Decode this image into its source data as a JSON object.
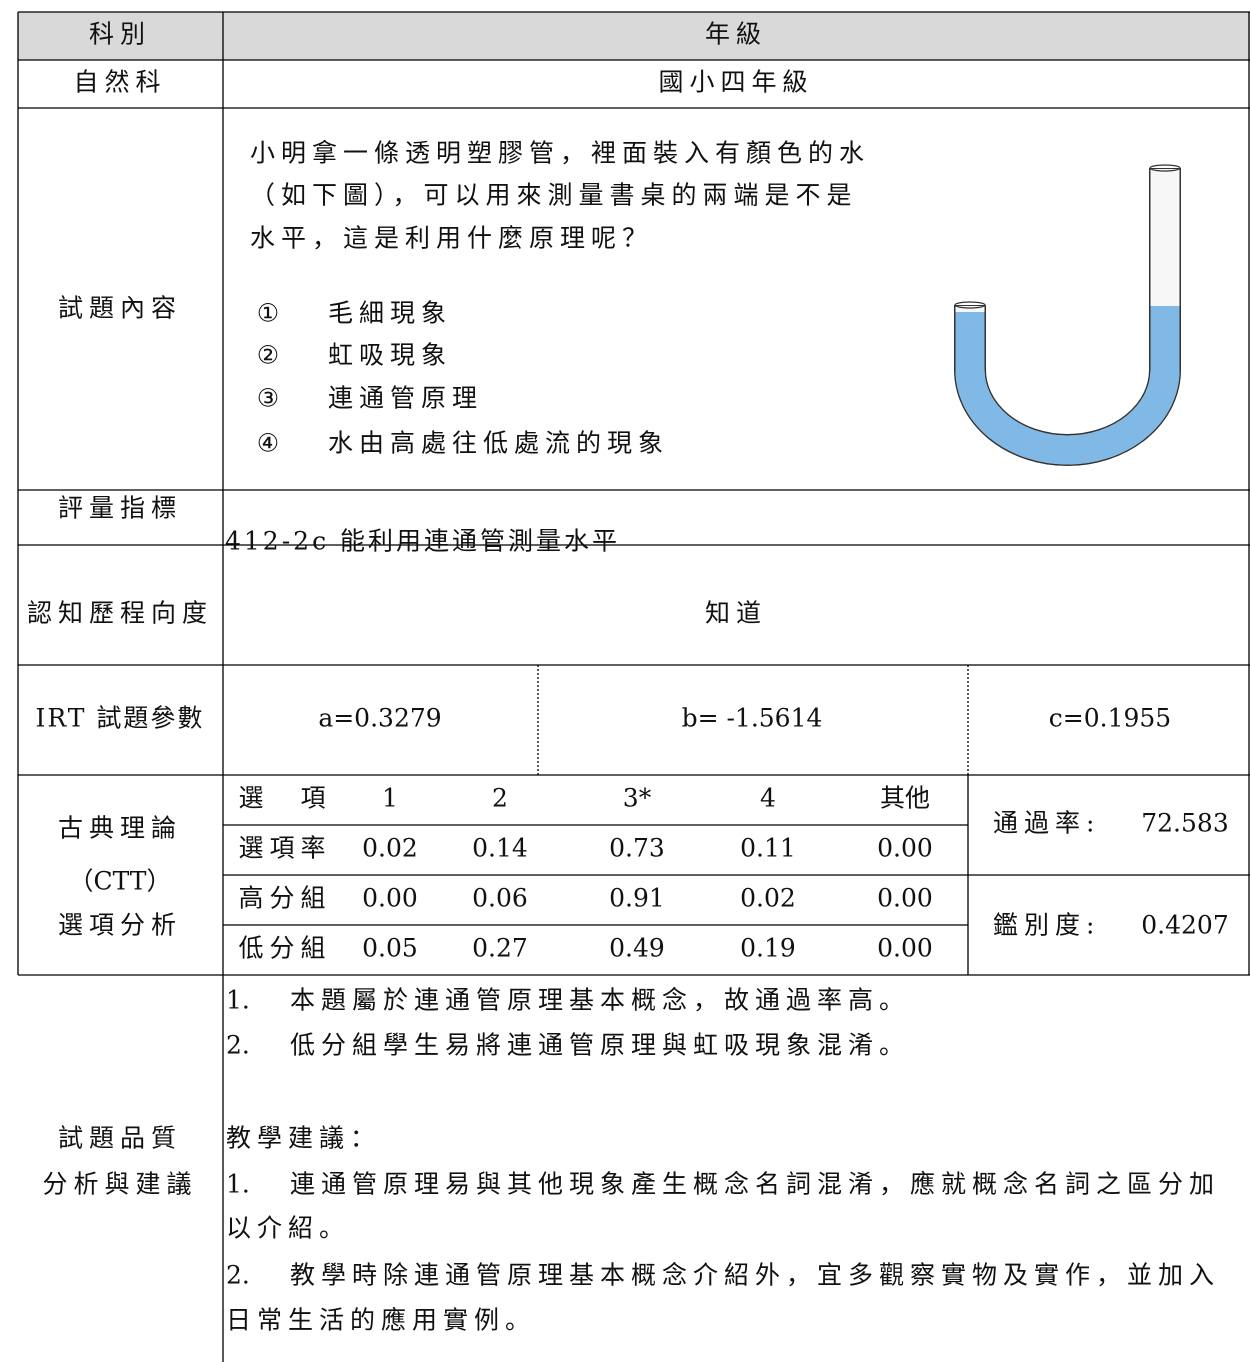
{
  "table": {
    "header": {
      "subject": "科別",
      "grade": "年級"
    },
    "subject_row": {
      "subject": "自然科",
      "grade": "國小四年級"
    },
    "question": {
      "label": "試題內容",
      "stem": [
        "小明拿一條透明塑膠管，裡面裝入有顏色的水",
        "（如下圖），可以用來測量書桌的兩端是不是",
        "水平，這是利用什麼原理呢？"
      ],
      "options": [
        {
          "marker": "①",
          "text": "毛細現象"
        },
        {
          "marker": "②",
          "text": "虹吸現象"
        },
        {
          "marker": "③",
          "text": "連通管原理"
        },
        {
          "marker": "④",
          "text": "水由高處往低處流的現象"
        }
      ]
    },
    "indicator": {
      "label": "評量指標",
      "text": "412-2c 能利用連通管測量水平"
    },
    "cognitive": {
      "label": "認知歷程向度",
      "text": "知道"
    },
    "irt": {
      "label": "IRT 試題參數",
      "params": [
        "a=0.3279",
        "b= -1.5614",
        "c=0.1955"
      ]
    },
    "ctt": {
      "label": [
        "古典理論",
        "（CTT）",
        "選項分析"
      ],
      "rows": [
        [
          "選　項",
          "1",
          "2",
          "3*",
          "4",
          "其他"
        ],
        [
          "選項率",
          "0.02",
          "0.14",
          "0.73",
          "0.11",
          "0.00"
        ],
        [
          "高分組",
          "0.00",
          "0.06",
          "0.91",
          "0.02",
          "0.00"
        ],
        [
          "低分組",
          "0.05",
          "0.27",
          "0.49",
          "0.19",
          "0.00"
        ]
      ],
      "pass_rate": {
        "label": "通過率:",
        "value": "72.583"
      },
      "discrimination": {
        "label": "鑑別度:",
        "value": "0.4207"
      }
    },
    "analysis": {
      "label": [
        "試題品質",
        "分析與建議"
      ],
      "notes": [
        {
          "marker": "1.",
          "text": "本題屬於連通管原理基本概念，故通過率高。"
        },
        {
          "marker": "2.",
          "text": "低分組學生易將連通管原理與虹吸現象混淆。"
        }
      ],
      "suggestion_title": "教學建議：",
      "suggestions": [
        {
          "marker": "1.",
          "lines": [
            "連通管原理易與其他現象產生概念名詞混淆，應就概念名詞之區分加",
            "以介紹。"
          ]
        },
        {
          "marker": "2.",
          "lines": [
            "教學時除連通管原理基本概念介紹外，宜多觀察實物及實作，並加入",
            "日常生活的應用實例。"
          ]
        }
      ]
    }
  }
}
